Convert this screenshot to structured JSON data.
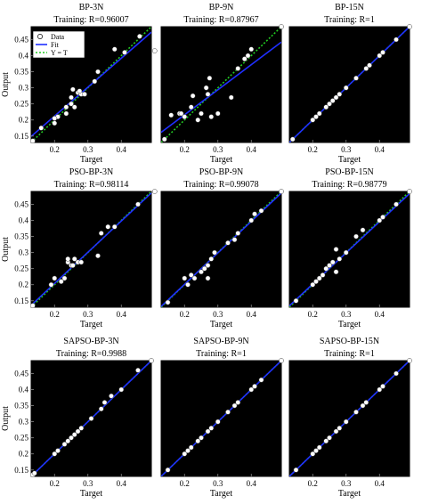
{
  "colors": {
    "background": "#000000",
    "data_marker": "#ffffff",
    "fit_line": "#1f2fff",
    "identity_line": "#22cc22",
    "axis": "#000000"
  },
  "legend": {
    "data": "Data",
    "fit": "Fit",
    "identity": "Y = T"
  },
  "chart_data": [
    {
      "type": "scatter",
      "title": "BP-3N",
      "subtitle": "Training: R=0.96007",
      "xlabel": "Target",
      "ylabel": "Output",
      "xlim": [
        0.13,
        0.49
      ],
      "ylim": [
        0.13,
        0.49
      ],
      "xticks": [
        "0.2",
        "0.3",
        "0.4"
      ],
      "yticks": [
        "0.15",
        "0.2",
        "0.25",
        "0.3",
        "0.35",
        "0.4",
        "0.45"
      ],
      "fit": {
        "slope": 0.9,
        "intercept": 0.032
      },
      "points": [
        [
          0.135,
          0.135
        ],
        [
          0.16,
          0.175
        ],
        [
          0.2,
          0.19
        ],
        [
          0.21,
          0.21
        ],
        [
          0.2,
          0.205
        ],
        [
          0.235,
          0.22
        ],
        [
          0.235,
          0.24
        ],
        [
          0.25,
          0.25
        ],
        [
          0.25,
          0.27
        ],
        [
          0.26,
          0.24
        ],
        [
          0.255,
          0.295
        ],
        [
          0.27,
          0.285
        ],
        [
          0.28,
          0.28
        ],
        [
          0.275,
          0.29
        ],
        [
          0.29,
          0.28
        ],
        [
          0.32,
          0.32
        ],
        [
          0.33,
          0.35
        ],
        [
          0.38,
          0.42
        ],
        [
          0.41,
          0.41
        ],
        [
          0.455,
          0.46
        ],
        [
          0.5,
          0.415
        ]
      ]
    },
    {
      "type": "scatter",
      "title": "BP-9N",
      "subtitle": "Training: R=0.87967",
      "xlabel": "Target",
      "ylabel": "",
      "xlim": [
        0.13,
        0.49
      ],
      "ylim": [
        0.13,
        0.49
      ],
      "xticks": [
        "0.2",
        "0.3",
        "0.4"
      ],
      "yticks": [],
      "fit": {
        "slope": 0.78,
        "intercept": 0.06
      },
      "points": [
        [
          0.14,
          0.14
        ],
        [
          0.16,
          0.215
        ],
        [
          0.185,
          0.22
        ],
        [
          0.19,
          0.22
        ],
        [
          0.2,
          0.21
        ],
        [
          0.22,
          0.24
        ],
        [
          0.24,
          0.2
        ],
        [
          0.225,
          0.275
        ],
        [
          0.25,
          0.22
        ],
        [
          0.27,
          0.28
        ],
        [
          0.265,
          0.3
        ],
        [
          0.275,
          0.33
        ],
        [
          0.28,
          0.21
        ],
        [
          0.3,
          0.22
        ],
        [
          0.34,
          0.27
        ],
        [
          0.36,
          0.36
        ],
        [
          0.38,
          0.39
        ],
        [
          0.39,
          0.4
        ],
        [
          0.4,
          0.42
        ],
        [
          0.49,
          0.49
        ]
      ]
    },
    {
      "type": "scatter",
      "title": "BP-15N",
      "subtitle": "Training: R=1",
      "xlabel": "Target",
      "ylabel": "",
      "xlim": [
        0.13,
        0.49
      ],
      "ylim": [
        0.13,
        0.49
      ],
      "xticks": [
        "0.2",
        "0.3",
        "0.4"
      ],
      "yticks": [],
      "fit": {
        "slope": 1.0,
        "intercept": 0.0
      },
      "points": [
        [
          0.14,
          0.14
        ],
        [
          0.2,
          0.2
        ],
        [
          0.21,
          0.21
        ],
        [
          0.22,
          0.22
        ],
        [
          0.24,
          0.24
        ],
        [
          0.25,
          0.25
        ],
        [
          0.26,
          0.26
        ],
        [
          0.27,
          0.27
        ],
        [
          0.28,
          0.28
        ],
        [
          0.3,
          0.3
        ],
        [
          0.33,
          0.33
        ],
        [
          0.36,
          0.36
        ],
        [
          0.37,
          0.37
        ],
        [
          0.4,
          0.4
        ],
        [
          0.41,
          0.41
        ],
        [
          0.45,
          0.45
        ],
        [
          0.49,
          0.49
        ]
      ]
    },
    {
      "type": "scatter",
      "title": "PSO-BP-3N",
      "subtitle": "Training: R=0.98114",
      "xlabel": "Target",
      "ylabel": "Output",
      "xlim": [
        0.13,
        0.49
      ],
      "ylim": [
        0.13,
        0.49
      ],
      "xticks": [
        "0.2",
        "0.3",
        "0.4"
      ],
      "yticks": [
        "0.15",
        "0.2",
        "0.25",
        "0.3",
        "0.35",
        "0.4",
        "0.45"
      ],
      "fit": {
        "slope": 0.97,
        "intercept": 0.01
      },
      "points": [
        [
          0.135,
          0.135
        ],
        [
          0.19,
          0.2
        ],
        [
          0.2,
          0.22
        ],
        [
          0.22,
          0.21
        ],
        [
          0.23,
          0.22
        ],
        [
          0.24,
          0.27
        ],
        [
          0.25,
          0.26
        ],
        [
          0.24,
          0.28
        ],
        [
          0.255,
          0.26
        ],
        [
          0.27,
          0.27
        ],
        [
          0.28,
          0.27
        ],
        [
          0.26,
          0.28
        ],
        [
          0.33,
          0.29
        ],
        [
          0.34,
          0.36
        ],
        [
          0.36,
          0.38
        ],
        [
          0.38,
          0.38
        ],
        [
          0.45,
          0.45
        ],
        [
          0.5,
          0.49
        ]
      ]
    },
    {
      "type": "scatter",
      "title": "PSO-BP-9N",
      "subtitle": "Training: R=0.99078",
      "xlabel": "Target",
      "ylabel": "",
      "xlim": [
        0.13,
        0.49
      ],
      "ylim": [
        0.13,
        0.49
      ],
      "xticks": [
        "0.2",
        "0.3",
        "0.4"
      ],
      "yticks": [],
      "fit": {
        "slope": 0.98,
        "intercept": 0.005
      },
      "points": [
        [
          0.15,
          0.145
        ],
        [
          0.2,
          0.22
        ],
        [
          0.21,
          0.2
        ],
        [
          0.22,
          0.23
        ],
        [
          0.23,
          0.22
        ],
        [
          0.25,
          0.24
        ],
        [
          0.26,
          0.25
        ],
        [
          0.27,
          0.26
        ],
        [
          0.28,
          0.28
        ],
        [
          0.27,
          0.22
        ],
        [
          0.29,
          0.3
        ],
        [
          0.33,
          0.33
        ],
        [
          0.35,
          0.34
        ],
        [
          0.36,
          0.36
        ],
        [
          0.4,
          0.4
        ],
        [
          0.41,
          0.42
        ],
        [
          0.43,
          0.43
        ],
        [
          0.49,
          0.49
        ]
      ]
    },
    {
      "type": "scatter",
      "title": "PSO-BP-15N",
      "subtitle": "Training: R=0.98779",
      "xlabel": "Target",
      "ylabel": "",
      "xlim": [
        0.13,
        0.49
      ],
      "ylim": [
        0.13,
        0.49
      ],
      "xticks": [
        "0.2",
        "0.3",
        "0.4"
      ],
      "yticks": [],
      "fit": {
        "slope": 0.97,
        "intercept": 0.008
      },
      "points": [
        [
          0.15,
          0.15
        ],
        [
          0.2,
          0.2
        ],
        [
          0.21,
          0.21
        ],
        [
          0.22,
          0.22
        ],
        [
          0.23,
          0.23
        ],
        [
          0.24,
          0.25
        ],
        [
          0.25,
          0.26
        ],
        [
          0.26,
          0.27
        ],
        [
          0.27,
          0.24
        ],
        [
          0.28,
          0.28
        ],
        [
          0.27,
          0.31
        ],
        [
          0.3,
          0.3
        ],
        [
          0.33,
          0.35
        ],
        [
          0.35,
          0.37
        ],
        [
          0.4,
          0.4
        ],
        [
          0.41,
          0.41
        ],
        [
          0.45,
          0.45
        ],
        [
          0.49,
          0.49
        ]
      ]
    },
    {
      "type": "scatter",
      "title": "SAPSO-BP-3N",
      "subtitle": "Training: R=0.9988",
      "xlabel": "Target",
      "ylabel": "Output",
      "xlim": [
        0.13,
        0.49
      ],
      "ylim": [
        0.13,
        0.49
      ],
      "xticks": [
        "0.2",
        "0.3",
        "0.4"
      ],
      "yticks": [
        "0.15",
        "0.2",
        "0.25",
        "0.3",
        "0.35",
        "0.4",
        "0.45"
      ],
      "fit": {
        "slope": 1.0,
        "intercept": 0.0
      },
      "points": [
        [
          0.135,
          0.135
        ],
        [
          0.14,
          0.14
        ],
        [
          0.2,
          0.2
        ],
        [
          0.21,
          0.21
        ],
        [
          0.23,
          0.23
        ],
        [
          0.24,
          0.24
        ],
        [
          0.25,
          0.25
        ],
        [
          0.26,
          0.26
        ],
        [
          0.27,
          0.27
        ],
        [
          0.28,
          0.28
        ],
        [
          0.31,
          0.31
        ],
        [
          0.34,
          0.34
        ],
        [
          0.35,
          0.36
        ],
        [
          0.37,
          0.38
        ],
        [
          0.4,
          0.4
        ],
        [
          0.45,
          0.46
        ],
        [
          0.49,
          0.49
        ]
      ]
    },
    {
      "type": "scatter",
      "title": "SAPSO-BP-9N",
      "subtitle": "Training: R=1",
      "xlabel": "Target",
      "ylabel": "",
      "xlim": [
        0.13,
        0.49
      ],
      "ylim": [
        0.13,
        0.49
      ],
      "xticks": [
        "0.2",
        "0.3",
        "0.4"
      ],
      "yticks": [],
      "fit": {
        "slope": 1.0,
        "intercept": 0.0
      },
      "points": [
        [
          0.15,
          0.15
        ],
        [
          0.2,
          0.2
        ],
        [
          0.21,
          0.21
        ],
        [
          0.22,
          0.22
        ],
        [
          0.24,
          0.24
        ],
        [
          0.25,
          0.25
        ],
        [
          0.27,
          0.27
        ],
        [
          0.28,
          0.28
        ],
        [
          0.3,
          0.3
        ],
        [
          0.33,
          0.33
        ],
        [
          0.35,
          0.35
        ],
        [
          0.36,
          0.36
        ],
        [
          0.4,
          0.4
        ],
        [
          0.41,
          0.41
        ],
        [
          0.43,
          0.43
        ],
        [
          0.49,
          0.49
        ]
      ]
    },
    {
      "type": "scatter",
      "title": "SAPSO-BP-15N",
      "subtitle": "Training: R=1",
      "xlabel": "Target",
      "ylabel": "",
      "xlim": [
        0.13,
        0.49
      ],
      "ylim": [
        0.13,
        0.49
      ],
      "xticks": [
        "0.2",
        "0.3",
        "0.4"
      ],
      "yticks": [],
      "fit": {
        "slope": 1.0,
        "intercept": 0.0
      },
      "points": [
        [
          0.15,
          0.15
        ],
        [
          0.2,
          0.2
        ],
        [
          0.21,
          0.21
        ],
        [
          0.22,
          0.22
        ],
        [
          0.24,
          0.24
        ],
        [
          0.25,
          0.25
        ],
        [
          0.27,
          0.27
        ],
        [
          0.28,
          0.28
        ],
        [
          0.3,
          0.3
        ],
        [
          0.33,
          0.33
        ],
        [
          0.35,
          0.35
        ],
        [
          0.36,
          0.36
        ],
        [
          0.4,
          0.4
        ],
        [
          0.41,
          0.41
        ],
        [
          0.45,
          0.45
        ],
        [
          0.49,
          0.49
        ]
      ]
    }
  ]
}
